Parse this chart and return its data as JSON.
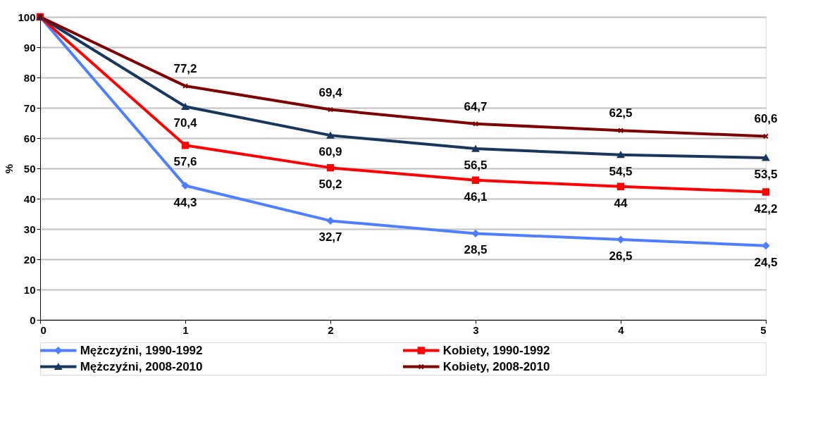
{
  "chart_data": {
    "type": "line",
    "ylabel": "%",
    "x": [
      0,
      1,
      2,
      3,
      4,
      5
    ],
    "xlim": [
      0,
      5
    ],
    "xticks": [
      0,
      1,
      2,
      3,
      4,
      5
    ],
    "ylim": [
      0,
      100
    ],
    "yticks": [
      0,
      10,
      20,
      30,
      40,
      50,
      60,
      70,
      80,
      90,
      100
    ],
    "grid": "y",
    "legend": "bottom",
    "line_style": "solid",
    "series": [
      {
        "name": "Mężczyźni, 1990-1992",
        "color": "#4d7fff",
        "marker": "diamond",
        "values": [
          100,
          44.3,
          32.7,
          28.5,
          26.5,
          24.5
        ],
        "value_labels": [
          null,
          "44,3",
          "32,7",
          "28,5",
          "26,5",
          "24,5"
        ]
      },
      {
        "name": "Kobiety, 1990-1992",
        "color": "#ff0000",
        "marker": "square",
        "values": [
          100,
          57.6,
          50.2,
          46.1,
          44,
          42.2
        ],
        "value_labels": [
          null,
          "57,6",
          "50,2",
          "46,1",
          "44",
          "42,2"
        ]
      },
      {
        "name": "Mężczyźni, 2008-2010",
        "color": "#17375e",
        "marker": "triangle",
        "values": [
          100,
          70.4,
          60.9,
          56.5,
          54.5,
          53.5
        ],
        "value_labels": [
          null,
          "70,4",
          "60,9",
          "56,5",
          "54,5",
          "53,5"
        ]
      },
      {
        "name": "Kobiety, 2008-2010",
        "color": "#7f0000",
        "marker": "cross",
        "values": [
          100,
          77.2,
          69.4,
          64.7,
          62.5,
          60.6
        ],
        "value_labels": [
          null,
          "77,2",
          "69,4",
          "64,7",
          "62,5",
          "60,6"
        ]
      }
    ]
  }
}
